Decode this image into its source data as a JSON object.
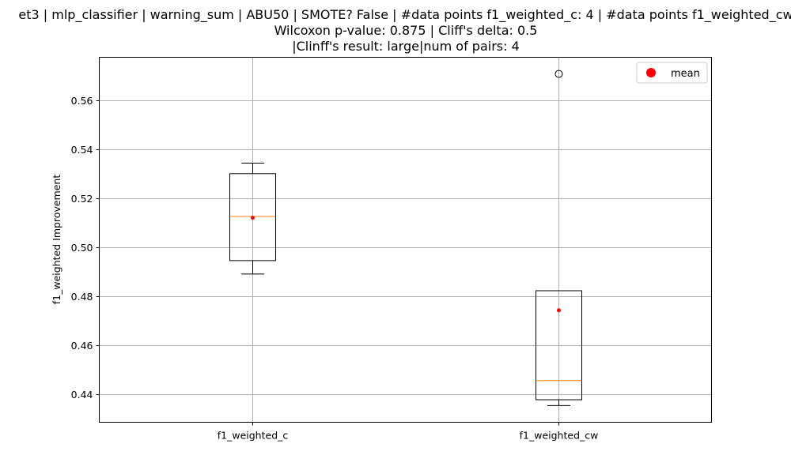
{
  "chart_data": {
    "type": "box",
    "title_lines": [
      "et3 | mlp_classifier | warning_sum | ABU50 | SMOTE? False | #data points f1_weighted_c: 4 | #data points f1_weighted_cw",
      "Wilcoxon p-value: 0.875 | Cliff's delta: 0.5",
      "|Clinff's result: large|num of pairs: 4"
    ],
    "ylabel": "f1_weighted Improvement",
    "xlabel": "",
    "categories": [
      "f1_weighted_c",
      "f1_weighted_cw"
    ],
    "ylim": [
      0.4285,
      0.5775
    ],
    "yticks": [
      0.44,
      0.46,
      0.48,
      0.5,
      0.52,
      0.54,
      0.56
    ],
    "ytick_labels": [
      "0.44",
      "0.46",
      "0.48",
      "0.50",
      "0.52",
      "0.54",
      "0.56"
    ],
    "grid": true,
    "legend": {
      "label": "mean",
      "placement": "top-right"
    },
    "boxes": [
      {
        "category": "f1_weighted_c",
        "whisker_low": 0.489,
        "q1": 0.4945,
        "median": 0.5125,
        "q3": 0.53,
        "whisker_high": 0.5343,
        "mean": 0.512,
        "outliers": []
      },
      {
        "category": "f1_weighted_cw",
        "whisker_low": 0.4353,
        "q1": 0.4377,
        "median": 0.4455,
        "q3": 0.4822,
        "whisker_high": 0.4822,
        "mean": 0.4742,
        "outliers": [
          0.5707
        ]
      }
    ],
    "colors": {
      "box": "#000000",
      "median": "#ff7f0e",
      "mean": "#ff0000",
      "grid": "#b0b0b0"
    }
  }
}
